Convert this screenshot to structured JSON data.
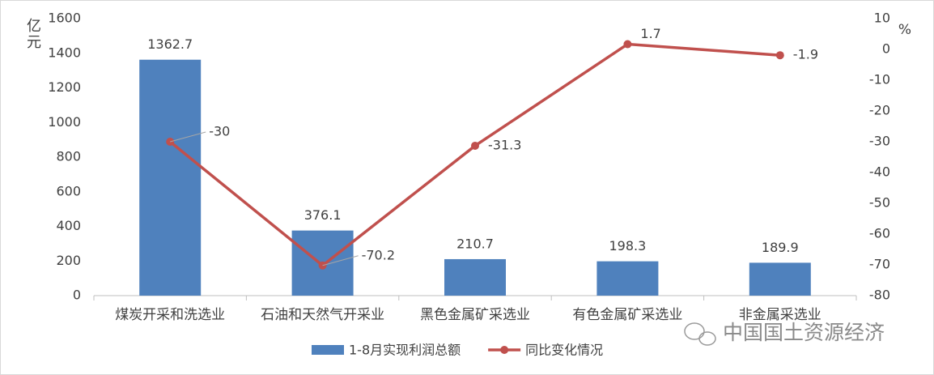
{
  "chart_data": {
    "type": "bar-line",
    "y_label": "亿元",
    "y2_label": "%",
    "categories": [
      "煤炭开采和洗选业",
      "石油和天然气开采业",
      "黑色金属矿采选业",
      "有色金属矿采选业",
      "非金属采选业"
    ],
    "series": [
      {
        "name": "1-8月实现利润总额",
        "color": "#4f81bd",
        "type": "bar",
        "values": [
          1362.7,
          376.1,
          210.7,
          198.3,
          189.9
        ]
      },
      {
        "name": "同比变化情况",
        "color": "#c0504d",
        "type": "line",
        "axis": "y2",
        "values": [
          -30,
          -70.2,
          -31.3,
          1.7,
          -1.9
        ]
      }
    ],
    "ylim": [
      0,
      1600
    ],
    "yticks": [
      0,
      200,
      400,
      600,
      800,
      1000,
      1200,
      1400,
      1600
    ],
    "y2lim": [
      -80,
      10
    ],
    "y2ticks": [
      -80,
      -70,
      -60,
      -50,
      -40,
      -30,
      -20,
      -10,
      0,
      10
    ],
    "legend": "bottom",
    "watermark": "中国国土资源经济"
  }
}
